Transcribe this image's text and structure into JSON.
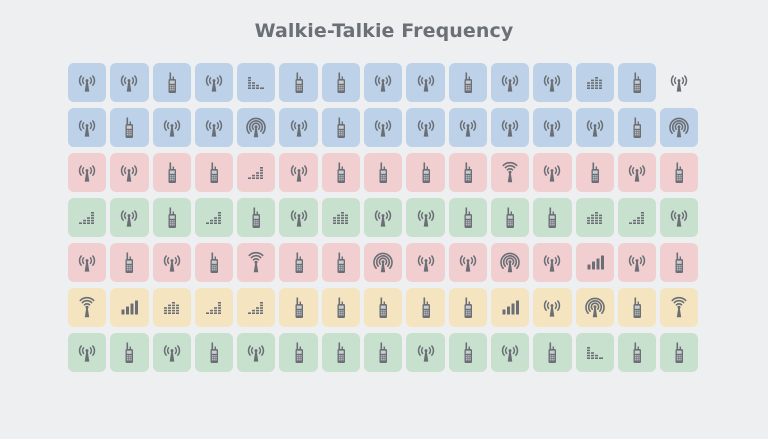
{
  "title": "Walkie-Talkie Frequency",
  "colors": {
    "blue": "#bdd2e8",
    "red": "#f1cfd1",
    "green": "#c7e1ce",
    "yellow": "#f4e4bf",
    "icon": "#6b6f75",
    "background": "#eeeff1"
  },
  "icon_legend": {
    "T": "antenna-tower-icon",
    "R": "walkie-talkie-icon",
    "A": "broadcast-arcs-icon",
    "W": "wifi-tower-icon",
    "Sd": "signal-descending-icon",
    "Sg": "signal-equalizer-icon",
    "Su": "signal-ascending-icon",
    "Sb": "signal-bars-icon"
  },
  "chart_data": {
    "type": "table",
    "title": "Walkie-Talkie Frequency",
    "description": "Pictogram grid of 7 rows x 15 columns; each cell is a colored tile with a radio-related icon",
    "rows": [
      {
        "color": "blue",
        "icons": [
          "T",
          "T",
          "R",
          "T",
          "Sd",
          "R",
          "R",
          "T",
          "T",
          "R",
          "T",
          "T",
          "Sg",
          "R",
          "T"
        ],
        "last_cell_no_background": true
      },
      {
        "color": "blue",
        "icons": [
          "T",
          "R",
          "T",
          "T",
          "A",
          "T",
          "R",
          "T",
          "T",
          "T",
          "T",
          "T",
          "T",
          "R",
          "A"
        ]
      },
      {
        "color": "red",
        "icons": [
          "T",
          "T",
          "R",
          "R",
          "Su",
          "T",
          "R",
          "R",
          "R",
          "R",
          "W",
          "T",
          "R",
          "T",
          "R"
        ]
      },
      {
        "color": "green",
        "icons": [
          "Su",
          "T",
          "R",
          "Su",
          "R",
          "T",
          "Sg",
          "T",
          "T",
          "R",
          "R",
          "R",
          "Sg",
          "Su",
          "T"
        ]
      },
      {
        "color": "red",
        "icons": [
          "T",
          "R",
          "T",
          "R",
          "W",
          "R",
          "R",
          "A",
          "T",
          "T",
          "A",
          "T",
          "Sb",
          "T",
          "R"
        ]
      },
      {
        "color": "yellow",
        "icons": [
          "W",
          "Sb",
          "Sg",
          "Su",
          "Su",
          "R",
          "R",
          "R",
          "R",
          "R",
          "Sb",
          "T",
          "A",
          "R",
          "W"
        ]
      },
      {
        "color": "green",
        "icons": [
          "T",
          "R",
          "T",
          "R",
          "T",
          "R",
          "R",
          "R",
          "T",
          "R",
          "T",
          "R",
          "Sd",
          "R",
          "R"
        ]
      }
    ],
    "columns": 15,
    "row_count": 7
  }
}
